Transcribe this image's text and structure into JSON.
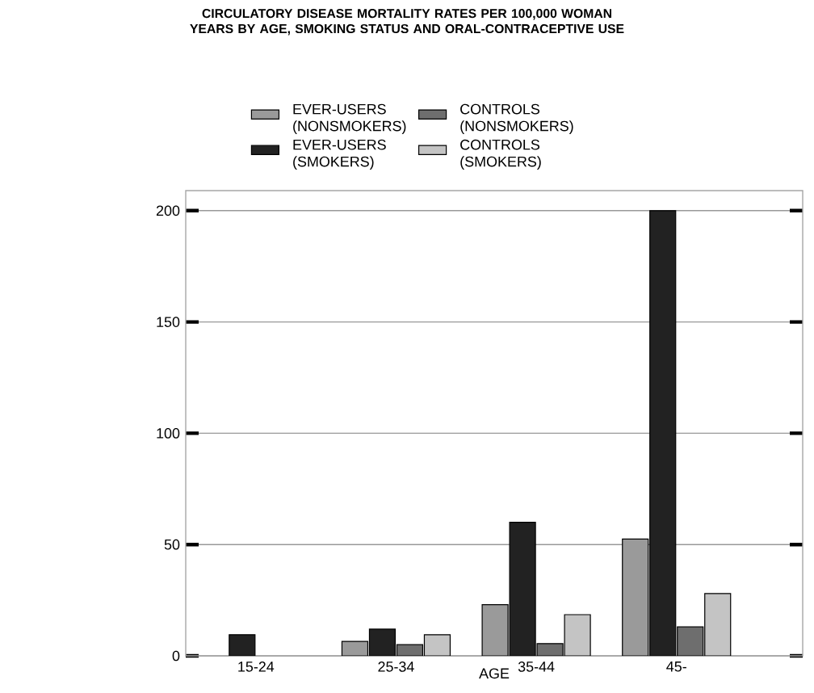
{
  "chart_data": {
    "type": "bar",
    "title": "CIRCULATORY DISEASE MORTALITY RATES PER 100,000 WOMAN YEARS BY AGE, SMOKING STATUS AND ORAL-CONTRACEPTIVE USE",
    "xlabel": "AGE",
    "categories": [
      "15-24",
      "25-34",
      "35-44",
      "45-"
    ],
    "series": [
      {
        "name": "EVER-USERS (NONSMOKERS)",
        "color": "#9a9a9a",
        "values": [
          null,
          6.5,
          23,
          52.5
        ]
      },
      {
        "name": "EVER-USERS (SMOKERS)",
        "color": "#222222",
        "values": [
          9.5,
          12,
          60,
          200
        ]
      },
      {
        "name": "CONTROLS (NONSMOKERS)",
        "color": "#6e6e6e",
        "values": [
          null,
          5,
          5.5,
          13
        ]
      },
      {
        "name": "CONTROLS (SMOKERS)",
        "color": "#c4c4c4",
        "values": [
          null,
          9.5,
          18.5,
          28
        ]
      }
    ],
    "ylim": [
      0,
      209
    ],
    "yticks": [
      0,
      50,
      100,
      150,
      200
    ],
    "grid": "y",
    "legend": "top"
  }
}
